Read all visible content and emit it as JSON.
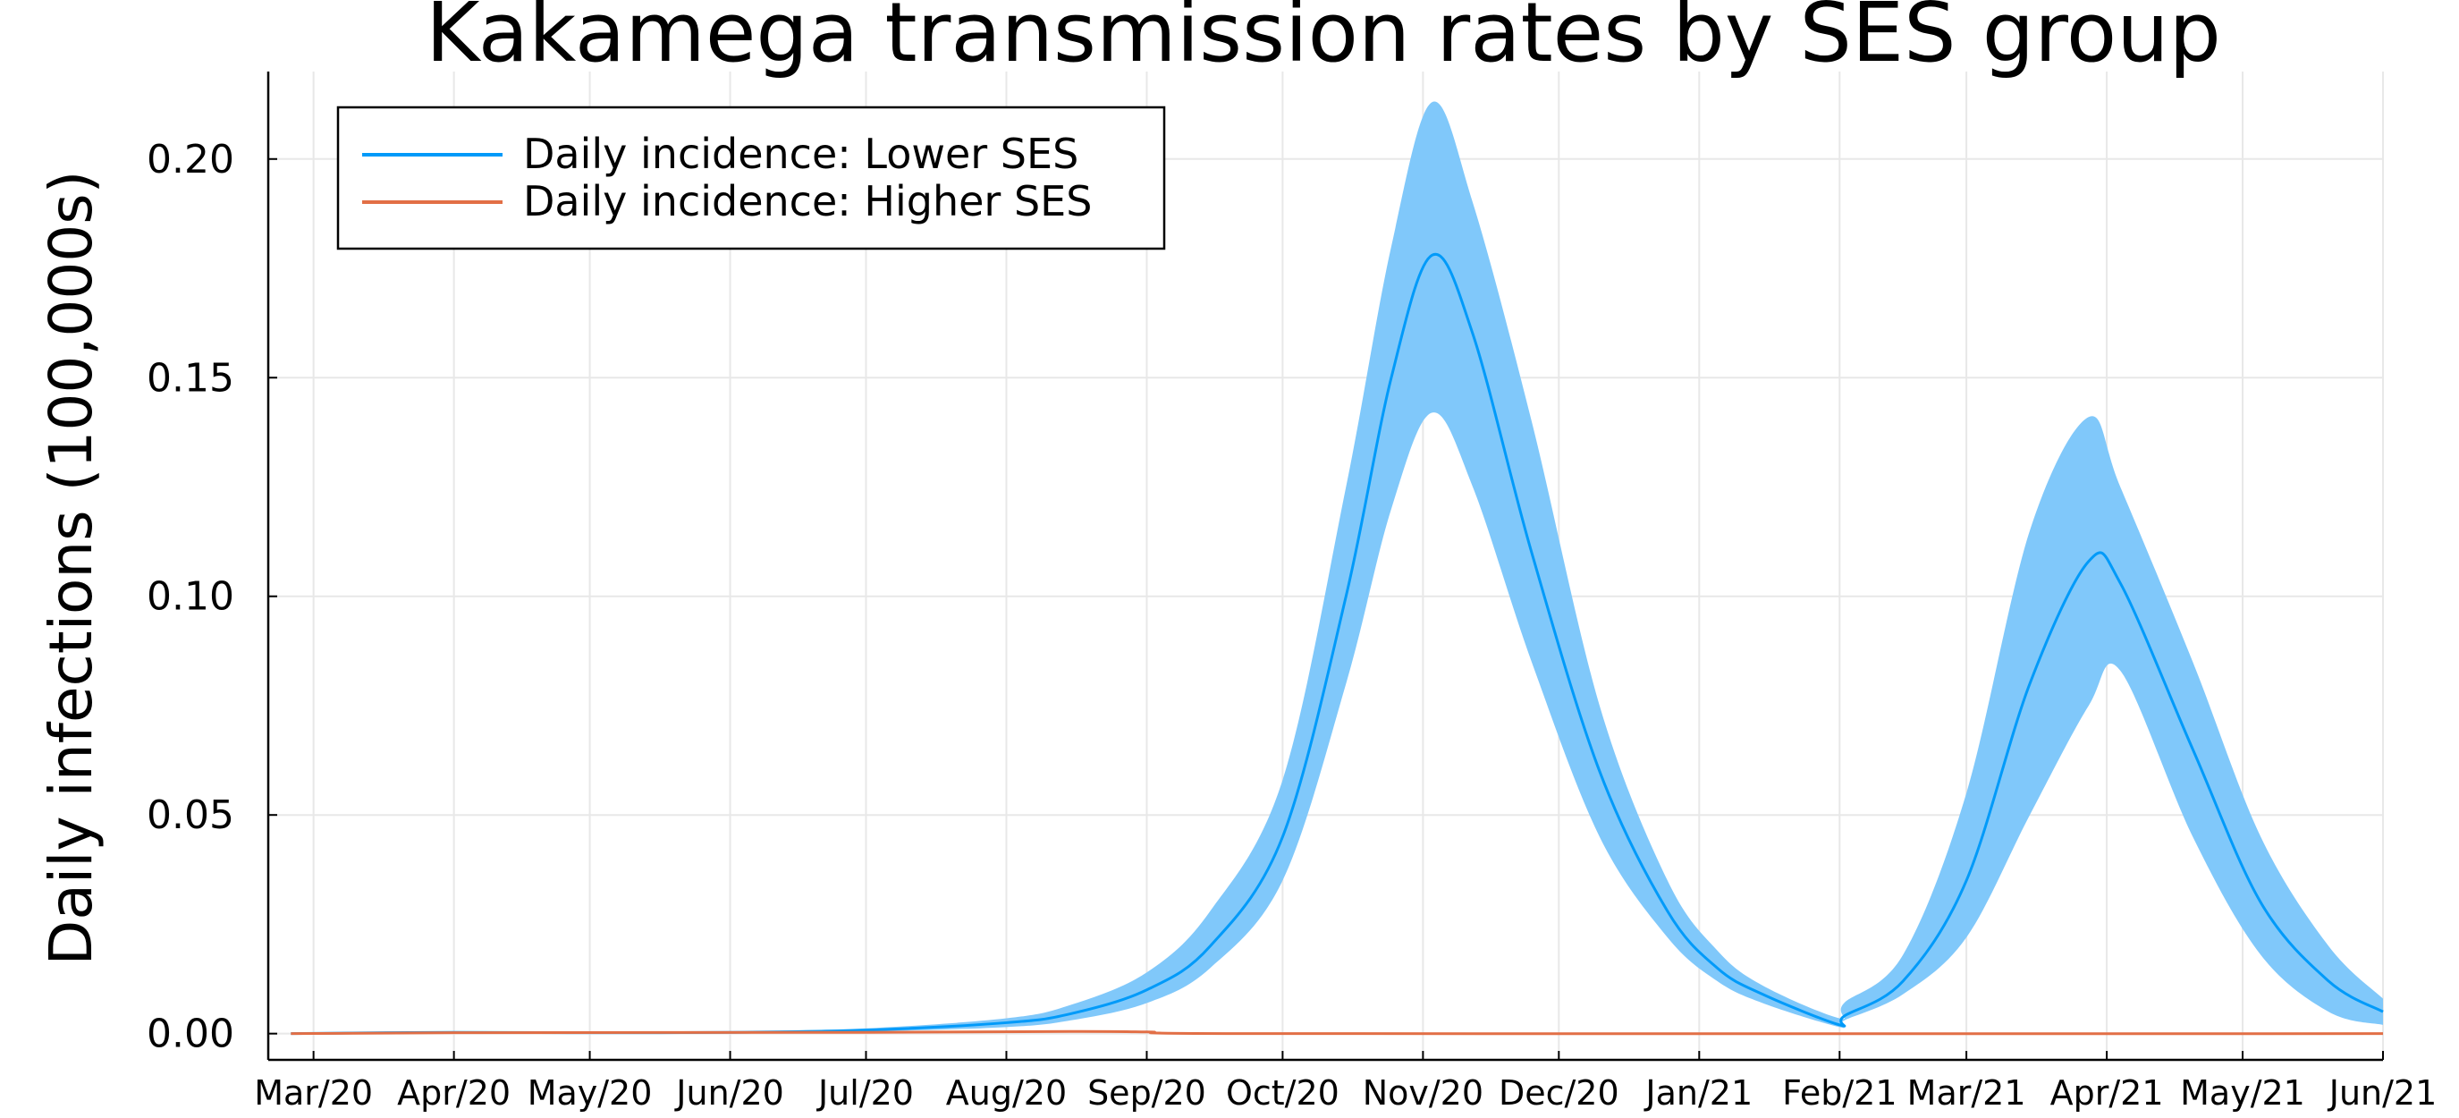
{
  "chart_data": {
    "type": "line",
    "title": "Kakamega transmission rates by SES group",
    "xlabel": "",
    "ylabel": "Daily infections (100,000s)",
    "x_ticks": [
      "Mar/20",
      "Apr/20",
      "May/20",
      "Jun/20",
      "Jul/20",
      "Aug/20",
      "Sep/20",
      "Oct/20",
      "Nov/20",
      "Dec/20",
      "Jan/21",
      "Feb/21",
      "Mar/21",
      "Apr/21",
      "May/21",
      "Jun/21"
    ],
    "y_ticks": [
      "0.00",
      "0.05",
      "0.10",
      "0.15",
      "0.20"
    ],
    "ylim": [
      -0.006,
      0.22
    ],
    "xlim": [
      "2020-02-20",
      "2021-06-01"
    ],
    "grid": true,
    "legend_position": "top-left",
    "series": [
      {
        "name": "Daily incidence: Lower SES",
        "color": "#009af9",
        "band_color": "#80c8fa",
        "points": [
          {
            "date": "2020-02-25",
            "value": 0.0,
            "lo": 0.0,
            "hi": 0.0
          },
          {
            "date": "2020-04-01",
            "value": 0.0003,
            "lo": 0.0002,
            "hi": 0.0004
          },
          {
            "date": "2020-05-01",
            "value": 0.0002,
            "lo": 0.0001,
            "hi": 0.0003
          },
          {
            "date": "2020-06-01",
            "value": 0.0003,
            "lo": 0.0002,
            "hi": 0.0005
          },
          {
            "date": "2020-07-01",
            "value": 0.0008,
            "lo": 0.0005,
            "hi": 0.0012
          },
          {
            "date": "2020-08-01",
            "value": 0.0025,
            "lo": 0.0015,
            "hi": 0.0035
          },
          {
            "date": "2020-08-15",
            "value": 0.0045,
            "lo": 0.003,
            "hi": 0.0065
          },
          {
            "date": "2020-09-01",
            "value": 0.01,
            "lo": 0.007,
            "hi": 0.014
          },
          {
            "date": "2020-09-15",
            "value": 0.02,
            "lo": 0.015,
            "hi": 0.028
          },
          {
            "date": "2020-10-01",
            "value": 0.045,
            "lo": 0.035,
            "hi": 0.058
          },
          {
            "date": "2020-10-15",
            "value": 0.1,
            "lo": 0.08,
            "hi": 0.125
          },
          {
            "date": "2020-10-25",
            "value": 0.15,
            "lo": 0.12,
            "hi": 0.18
          },
          {
            "date": "2020-11-03",
            "value": 0.178,
            "lo": 0.142,
            "hi": 0.213
          },
          {
            "date": "2020-11-12",
            "value": 0.16,
            "lo": 0.125,
            "hi": 0.19
          },
          {
            "date": "2020-11-25",
            "value": 0.11,
            "lo": 0.085,
            "hi": 0.14
          },
          {
            "date": "2020-12-10",
            "value": 0.06,
            "lo": 0.045,
            "hi": 0.075
          },
          {
            "date": "2020-12-25",
            "value": 0.028,
            "lo": 0.022,
            "hi": 0.035
          },
          {
            "date": "2021-01-05",
            "value": 0.015,
            "lo": 0.012,
            "hi": 0.019
          },
          {
            "date": "2021-01-15",
            "value": 0.009,
            "lo": 0.007,
            "hi": 0.011
          },
          {
            "date": "2021-02-01",
            "value": 0.002,
            "lo": 0.0015,
            "hi": 0.0035
          },
          {
            "date": "2021-02-02",
            "value": 0.004,
            "lo": 0.003,
            "hi": 0.007
          },
          {
            "date": "2021-02-15",
            "value": 0.012,
            "lo": 0.009,
            "hi": 0.018
          },
          {
            "date": "2021-03-01",
            "value": 0.035,
            "lo": 0.022,
            "hi": 0.055
          },
          {
            "date": "2021-03-15",
            "value": 0.08,
            "lo": 0.05,
            "hi": 0.115
          },
          {
            "date": "2021-03-28",
            "value": 0.108,
            "lo": 0.075,
            "hi": 0.141
          },
          {
            "date": "2021-04-04",
            "value": 0.103,
            "lo": 0.083,
            "hi": 0.125
          },
          {
            "date": "2021-04-20",
            "value": 0.065,
            "lo": 0.045,
            "hi": 0.085
          },
          {
            "date": "2021-05-05",
            "value": 0.03,
            "lo": 0.018,
            "hi": 0.045
          },
          {
            "date": "2021-05-20",
            "value": 0.012,
            "lo": 0.005,
            "hi": 0.02
          },
          {
            "date": "2021-06-01",
            "value": 0.005,
            "lo": 0.002,
            "hi": 0.008
          }
        ]
      },
      {
        "name": "Daily incidence: Higher SES",
        "color": "#e26f46",
        "points": [
          {
            "date": "2020-02-25",
            "value": 0.0
          },
          {
            "date": "2020-04-01",
            "value": 0.0002
          },
          {
            "date": "2020-07-01",
            "value": 0.0003
          },
          {
            "date": "2020-08-15",
            "value": 0.0005
          },
          {
            "date": "2020-09-01",
            "value": 0.0004
          },
          {
            "date": "2020-10-01",
            "value": 0.0
          },
          {
            "date": "2021-06-01",
            "value": 0.0
          }
        ]
      }
    ]
  }
}
